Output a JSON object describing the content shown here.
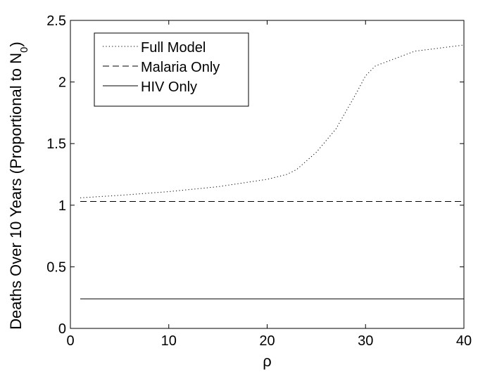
{
  "chart_data": {
    "type": "line",
    "title": "",
    "xlabel": "ρ",
    "ylabel": {
      "text": "Deaths Over 10 Years (Proportional to N",
      "subscript": "0",
      "close": ")"
    },
    "xlim": [
      0,
      40
    ],
    "ylim": [
      0,
      2.5
    ],
    "xticks": [
      0,
      10,
      20,
      30,
      40
    ],
    "xtick_labels": [
      "0",
      "10",
      "20",
      "30",
      "40"
    ],
    "yticks": [
      0,
      0.5,
      1,
      1.5,
      2,
      2.5
    ],
    "ytick_labels": [
      "0",
      "0.5",
      "1",
      "1.5",
      "2",
      "2.5"
    ],
    "grid": false,
    "legend_position": "top-left",
    "series": [
      {
        "name": "Full Model",
        "style": "dotted",
        "color": "#000000",
        "x": [
          1,
          5,
          10,
          15,
          20,
          22,
          23,
          25,
          27,
          29,
          30,
          31,
          33,
          35,
          37,
          40
        ],
        "y": [
          1.06,
          1.08,
          1.11,
          1.15,
          1.21,
          1.25,
          1.29,
          1.43,
          1.62,
          1.9,
          2.05,
          2.13,
          2.19,
          2.25,
          2.27,
          2.3
        ]
      },
      {
        "name": "Malaria Only",
        "style": "dashed",
        "color": "#000000",
        "x": [
          1,
          40
        ],
        "y": [
          1.03,
          1.03
        ]
      },
      {
        "name": "HIV Only",
        "style": "solid",
        "color": "#000000",
        "x": [
          1,
          40
        ],
        "y": [
          0.24,
          0.24
        ]
      }
    ]
  }
}
